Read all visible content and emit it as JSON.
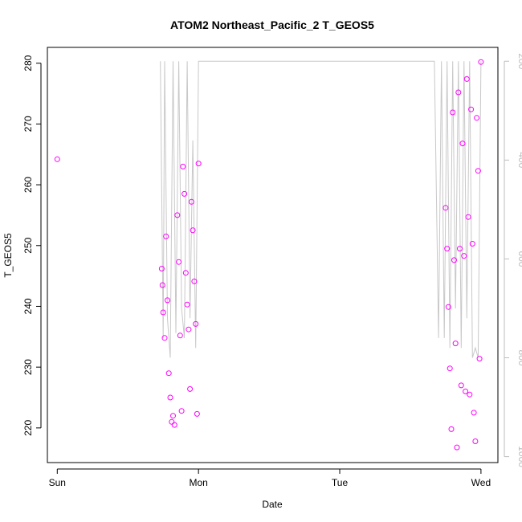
{
  "chart_data": {
    "type": "scatter",
    "title": "ATOM2 Northeast_Pacific_2 T_GEOS5",
    "xlabel": "Date",
    "ylabel": "T_GEOS5",
    "x_ticks": [
      {
        "label": "Sun",
        "day": 0
      },
      {
        "label": "Mon",
        "day": 1
      },
      {
        "label": "Tue",
        "day": 2
      },
      {
        "label": "Wed",
        "day": 3
      }
    ],
    "xlim": [
      -0.07,
      3.12
    ],
    "ylim": [
      214.3,
      282.6
    ],
    "y_ticks": [
      220,
      230,
      240,
      250,
      260,
      270,
      280
    ],
    "y2_label": "pressure",
    "y2_ticks": [
      200,
      400,
      600,
      800,
      1000
    ],
    "y2lim": [
      1012,
      172
    ],
    "colors": {
      "points": "#ff00ff",
      "pressure_line": "#c8c8c8",
      "axis": "#000000",
      "right_axis": "#bdbdbd"
    },
    "series": [
      {
        "marker": "open-circle",
        "x": [
          0.0,
          0.74,
          0.745,
          0.75,
          0.76,
          0.77,
          0.78,
          0.79,
          0.8,
          0.81,
          0.82,
          0.83,
          0.85,
          0.86,
          0.87,
          0.88,
          0.89,
          0.9,
          0.91,
          0.92,
          0.93,
          0.94,
          0.95,
          0.96,
          0.97,
          0.98,
          0.99,
          1.0
        ],
        "y": [
          264.2,
          246.2,
          243.5,
          239.0,
          234.8,
          251.5,
          241.0,
          229.0,
          225.0,
          221.0,
          222.0,
          220.5,
          255.0,
          247.3,
          235.2,
          222.8,
          263.0,
          258.5,
          245.5,
          240.3,
          236.2,
          226.4,
          257.2,
          252.5,
          244.1,
          237.1,
          222.3,
          263.5
        ]
      },
      {
        "marker": "open-circle",
        "x": [
          2.75,
          2.76,
          2.77,
          2.78,
          2.79,
          2.8,
          2.81,
          2.82,
          2.83,
          2.84,
          2.85,
          2.86,
          2.87,
          2.88,
          2.89,
          2.9,
          2.91,
          2.92,
          2.93,
          2.94,
          2.95,
          2.96,
          2.97,
          2.98,
          2.99,
          3.0
        ],
        "y": [
          256.2,
          249.5,
          239.9,
          229.8,
          219.8,
          271.9,
          247.6,
          233.9,
          216.8,
          275.2,
          249.5,
          227.0,
          266.8,
          248.3,
          226.0,
          277.4,
          254.7,
          225.5,
          272.4,
          250.3,
          222.5,
          217.8,
          271.0,
          262.3,
          231.4,
          280.2
        ]
      }
    ],
    "pressure_line": {
      "x": [
        0.73,
        0.75,
        0.76,
        0.78,
        0.8,
        0.82,
        0.84,
        0.86,
        0.88,
        0.9,
        0.92,
        0.94,
        0.96,
        0.98,
        1.0,
        2.6,
        2.67,
        2.7,
        2.72,
        2.74,
        2.76,
        2.78,
        2.8,
        2.82,
        2.84,
        2.86,
        2.88,
        2.9,
        2.92,
        2.94,
        2.96,
        2.98,
        3.0
      ],
      "y": [
        200,
        760,
        200,
        720,
        800,
        200,
        750,
        200,
        700,
        760,
        200,
        720,
        360,
        780,
        200,
        200,
        200,
        760,
        200,
        760,
        200,
        780,
        200,
        700,
        200,
        780,
        200,
        720,
        200,
        800,
        780,
        800,
        200
      ]
    }
  }
}
